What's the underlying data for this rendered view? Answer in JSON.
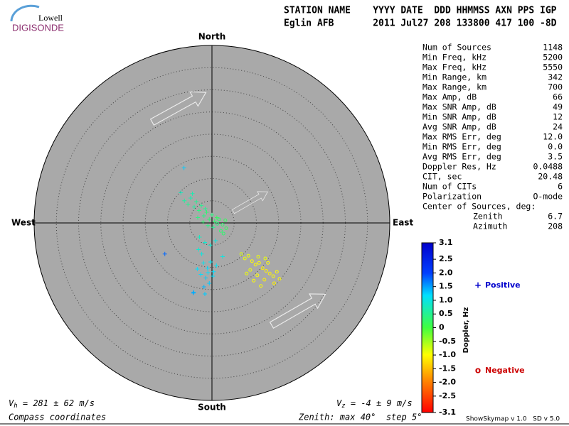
{
  "logo": {
    "top": "Lowell",
    "bottom": "DIGISONDE"
  },
  "header": {
    "labels": "STATION NAME    YYYY DATE  DDD HHMMSS AXN PPS IGP",
    "values": "Eglin AFB       2011 Jul27 208 133800 417 100 -8D"
  },
  "stats": [
    [
      "Num of Sources",
      "1148"
    ],
    [
      "Min Freq, kHz",
      "5200"
    ],
    [
      "Max Freq, kHz",
      "5550"
    ],
    [
      "Min Range, km",
      "342"
    ],
    [
      "Max Range, km",
      "700"
    ],
    [
      "Max Amp, dB",
      "66"
    ],
    [
      "Max SNR Amp, dB",
      "49"
    ],
    [
      "Min SNR Amp, dB",
      "12"
    ],
    [
      "Avg SNR Amp, dB",
      "24"
    ],
    [
      "Max RMS Err, deg",
      "12.0"
    ],
    [
      "Min RMS Err, deg",
      "0.0"
    ],
    [
      "Avg RMS Err, deg",
      "3.5"
    ],
    [
      "Doppler Res, Hz",
      "0.0488"
    ],
    [
      "CIT, sec",
      "20.48"
    ],
    [
      "Num of CITs",
      "6"
    ],
    [
      "Polarization",
      "O-mode"
    ]
  ],
  "center": {
    "label": "Center of Sources, deg:",
    "rows": [
      [
        "Zenith",
        "6.7"
      ],
      [
        "Azimuth",
        "208"
      ]
    ]
  },
  "footer": {
    "vh": {
      "symbol": "V",
      "sub": "h",
      "text": " = 281 ± 62 m/s"
    },
    "vz": {
      "symbol": "V",
      "sub": "z",
      "text": " = -4 ± 9 m/s"
    },
    "coords": "Compass coordinates",
    "zenith": "Zenith: max 40°  step 5°",
    "version": "ShowSkymap v 1.0   SD v 5.0"
  },
  "chart_data": {
    "type": "skymap",
    "directions": {
      "north": "North",
      "south": "South",
      "east": "East",
      "west": "West"
    },
    "rlim": [
      0,
      40
    ],
    "rticks": [
      5,
      10,
      15,
      20,
      25,
      30,
      35
    ],
    "colorbar": {
      "label": "Doppler, Hz",
      "clim": [
        -3.1,
        3.1
      ],
      "ticks": [
        3.1,
        2.5,
        {
          "value": 2,
          "label": "2.0"
        },
        1.5,
        {
          "value": 1,
          "label": "1.0"
        },
        0.5,
        0,
        -0.5,
        {
          "value": -1,
          "label": "-1.0"
        },
        -1.5,
        {
          "value": -2,
          "label": "-2.0"
        },
        -2.5,
        -3.1
      ]
    },
    "series": [
      {
        "name": "Positive",
        "marker": "+",
        "color": "#0000cc",
        "x": [
          -6.2,
          -5.4,
          -4.8,
          -4.0,
          -3.5,
          -2.9,
          -2.4,
          -1.8,
          -1.2,
          -0.6,
          0.0,
          0.6,
          1.1,
          -7.0,
          -3.2,
          -2.0,
          -0.9,
          0.3,
          -4.4,
          -1.5,
          -2.8,
          -1.6,
          -0.4,
          0.8,
          -3.0,
          -1.9,
          -1.0,
          -0.3,
          0.4,
          1.0,
          -2.5,
          -1.4,
          -0.6,
          0.2,
          -1.8,
          -0.9,
          -3.3,
          2.4,
          -4.1,
          -2.3,
          -6.3,
          -10.6,
          -4.2,
          -1.6
        ],
        "y": [
          5.0,
          4.2,
          5.6,
          3.6,
          4.8,
          2.8,
          3.9,
          1.6,
          2.4,
          0.8,
          1.8,
          0.4,
          1.2,
          6.8,
          1.2,
          0.2,
          -0.6,
          -1.0,
          6.6,
          3.2,
          -3.2,
          -4.4,
          -5.0,
          -4.0,
          -6.0,
          -9.0,
          -10.2,
          -8.8,
          -11.0,
          -9.6,
          -11.6,
          -12.4,
          -13.6,
          -12.0,
          -14.4,
          -11.2,
          -10.4,
          -7.6,
          -15.6,
          -7.0,
          12.4,
          -7.0,
          -15.8,
          -16.0
        ],
        "doppler": [
          0.6,
          0.5,
          0.7,
          0.6,
          0.5,
          0.4,
          0.5,
          0.4,
          0.3,
          0.3,
          0.4,
          0.3,
          0.2,
          0.8,
          0.4,
          0.3,
          0.4,
          0.5,
          0.7,
          0.5,
          0.8,
          0.9,
          0.9,
          1.0,
          0.9,
          1.1,
          1.2,
          1.1,
          1.2,
          1.1,
          1.2,
          1.3,
          1.3,
          1.2,
          1.4,
          1.2,
          1.2,
          1.0,
          1.4,
          1.0,
          1.3,
          1.8,
          1.5,
          1.3
        ]
      },
      {
        "name": "Negative",
        "marker": "o",
        "color": "#cc0000",
        "x": [
          6.6,
          7.4,
          8.2,
          9.0,
          9.8,
          10.6,
          11.4,
          12.2,
          13.0,
          13.8,
          14.6,
          8.6,
          10.2,
          11.8,
          9.4,
          12.6,
          10.4,
          14.0,
          11.0,
          7.8,
          15.2,
          12.0,
          1.6,
          2.4,
          3.2,
          2.0,
          1.2,
          3.0,
          2.6
        ],
        "y": [
          -7.0,
          -8.0,
          -7.4,
          -8.6,
          -9.4,
          -9.0,
          -10.2,
          -10.8,
          -11.4,
          -12.0,
          -11.0,
          -10.6,
          -11.8,
          -12.8,
          -13.0,
          -9.0,
          -7.6,
          -13.6,
          -14.2,
          -11.4,
          -12.6,
          -8.0,
          0.8,
          -0.4,
          -1.2,
          -1.8,
          -0.2,
          0.6,
          -2.4
        ],
        "doppler": [
          -0.8,
          -0.9,
          -0.9,
          -1.0,
          -1.0,
          -1.0,
          -1.1,
          -1.1,
          -1.1,
          -1.0,
          -1.0,
          -0.9,
          -1.0,
          -1.1,
          -1.0,
          -1.0,
          -0.9,
          -1.1,
          -1.0,
          -0.9,
          -1.0,
          -0.9,
          0.3,
          0.3,
          0.2,
          0.3,
          0.4,
          0.2,
          0.3
        ]
      }
    ]
  }
}
